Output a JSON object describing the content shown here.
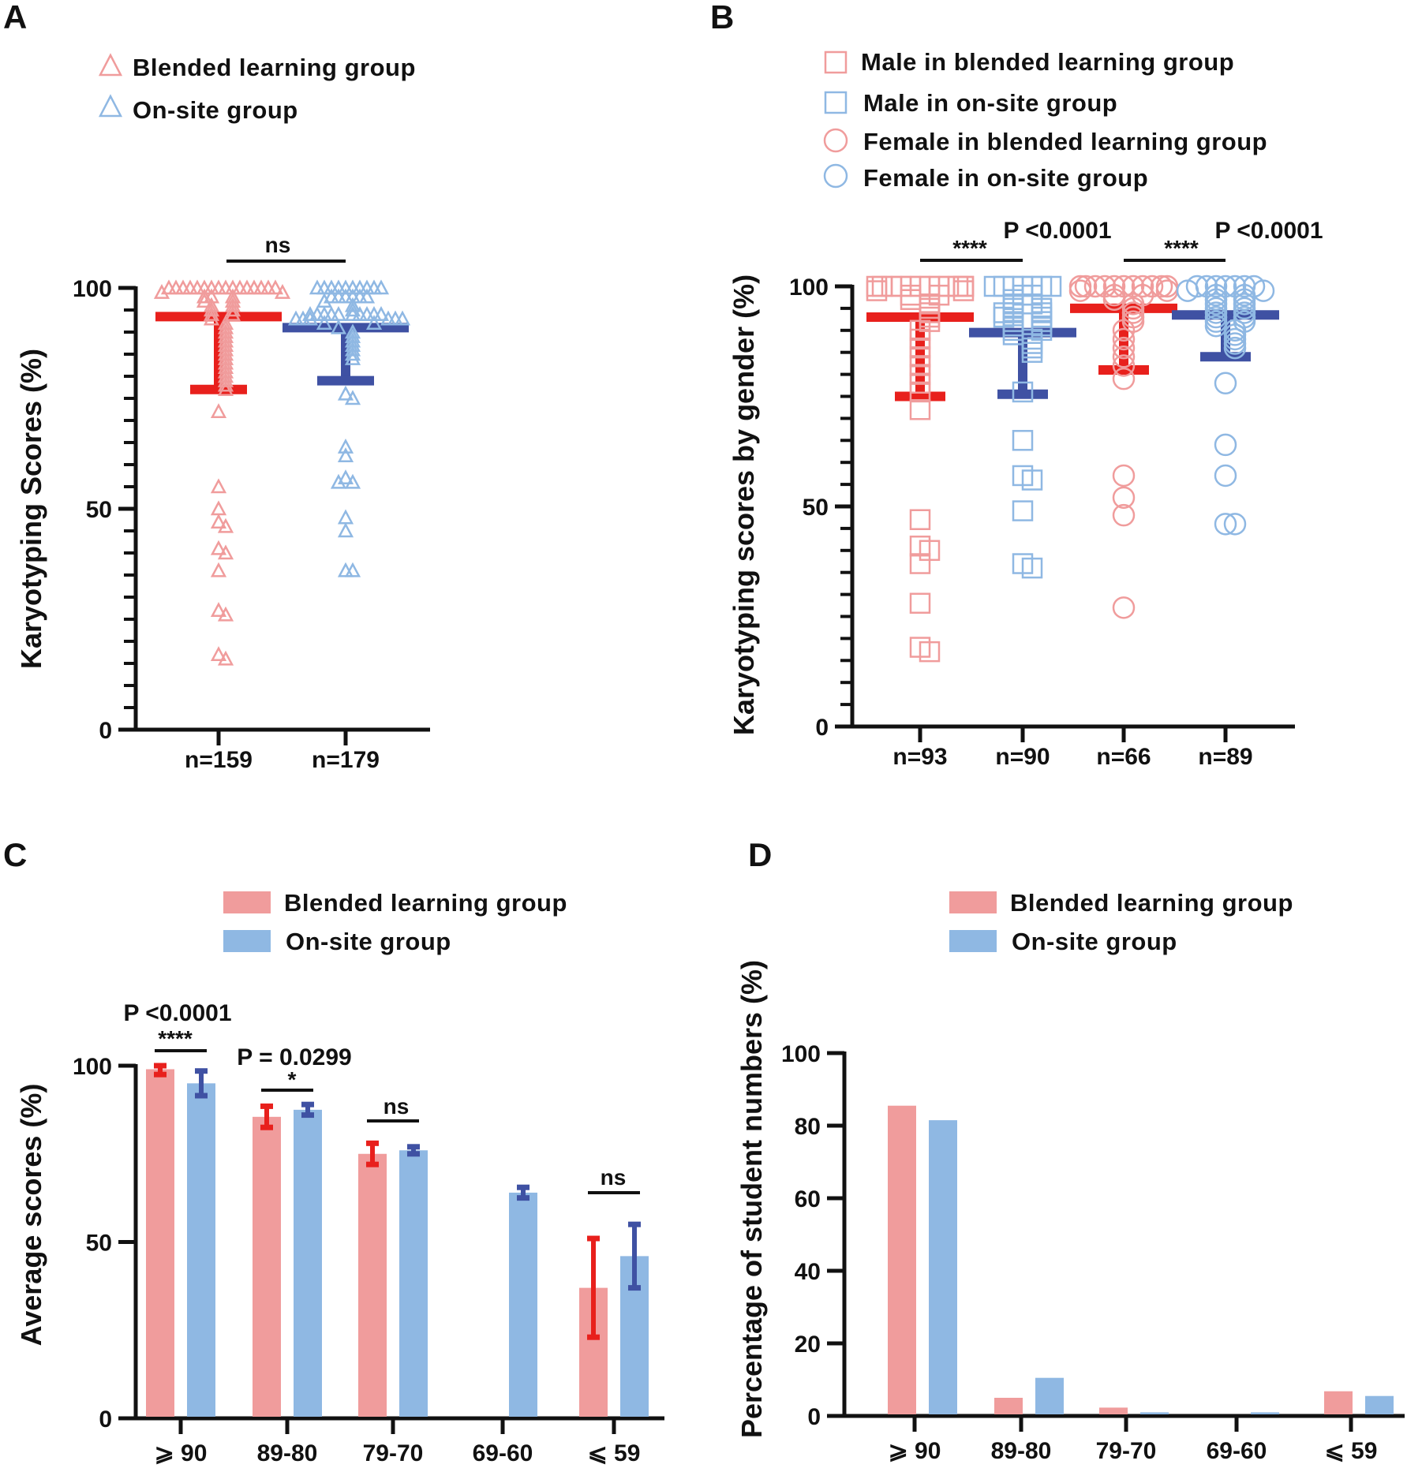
{
  "colors": {
    "blended": "#f09c9c",
    "onsite": "#8fb8e3",
    "blended_summary": "#e8201c",
    "onsite_summary": "#3f51a3"
  },
  "chart_data": [
    {
      "panel": "A",
      "type": "scatter",
      "legend": [
        "Blended learning group",
        "On-site group"
      ],
      "legend_placement": "top-left",
      "ylabel": "Karyotyping Scores (%)",
      "ylim": [
        0,
        100
      ],
      "yticks": [
        0,
        50,
        100
      ],
      "categories": [
        "n=159",
        "n=179"
      ],
      "significance": [
        {
          "between": [
            0,
            1
          ],
          "label": "ns"
        }
      ],
      "series": [
        {
          "name": "Blended learning group",
          "marker": "triangle",
          "mean": 93.5,
          "sd_low": 77,
          "values": [
            100,
            100,
            100,
            100,
            100,
            100,
            100,
            100,
            100,
            100,
            100,
            100,
            100,
            100,
            100,
            100,
            99,
            99,
            98,
            98,
            98,
            97,
            97,
            96,
            96,
            95,
            95,
            94,
            94,
            93,
            92,
            91,
            90,
            89,
            88,
            87,
            86,
            85,
            84,
            83,
            82,
            81,
            80,
            79,
            78,
            77,
            72,
            55,
            50,
            47,
            46,
            41,
            40,
            36,
            27,
            26,
            17,
            16
          ]
        },
        {
          "name": "On-site group",
          "marker": "triangle",
          "mean": 91,
          "sd_low": 79,
          "values": [
            100,
            100,
            100,
            100,
            100,
            100,
            100,
            100,
            100,
            100,
            98,
            98,
            98,
            98,
            98,
            98,
            97,
            96,
            95,
            94,
            94,
            94,
            94,
            94,
            94,
            94,
            94,
            94,
            94,
            93,
            93,
            93,
            93,
            93,
            93,
            92,
            92,
            91,
            90,
            89,
            88,
            87,
            86,
            85,
            84,
            76,
            75,
            64,
            62,
            57,
            56,
            56,
            48,
            45,
            36,
            36
          ]
        }
      ]
    },
    {
      "panel": "B",
      "type": "scatter",
      "legend": [
        "Male in blended learning group",
        "Male in on-site group",
        "Female in blended learning group",
        "Female in on-site group"
      ],
      "legend_placement": "top-left",
      "ylabel": "Karyotyping scores by gender (%)",
      "ylim": [
        0,
        100
      ],
      "yticks": [
        0,
        50,
        100
      ],
      "categories": [
        "n=93",
        "n=90",
        "n=66",
        "n=89"
      ],
      "significance": [
        {
          "between": [
            0,
            1
          ],
          "label": "****",
          "p": "P <0.0001"
        },
        {
          "between": [
            2,
            3
          ],
          "label": "****",
          "p": "P <0.0001"
        }
      ],
      "series": [
        {
          "name": "Male in blended learning group",
          "marker": "square",
          "group": "blended",
          "mean": 93,
          "sd_low": 75,
          "values": [
            100,
            100,
            100,
            100,
            100,
            100,
            100,
            100,
            100,
            100,
            100,
            100,
            99,
            99,
            98,
            98,
            97,
            96,
            95,
            94,
            93,
            92,
            90,
            88,
            86,
            84,
            82,
            80,
            78,
            76,
            72,
            47,
            41,
            40,
            37,
            28,
            18,
            17
          ]
        },
        {
          "name": "Male in on-site group",
          "marker": "square",
          "group": "onsite",
          "mean": 89.5,
          "sd_low": 75.5,
          "values": [
            100,
            100,
            100,
            100,
            100,
            100,
            100,
            98,
            98,
            97,
            96,
            96,
            95,
            95,
            94,
            94,
            94,
            93,
            93,
            92,
            92,
            91,
            91,
            90,
            90,
            89,
            88,
            87,
            86,
            85,
            76,
            65,
            57,
            56,
            49,
            37,
            36
          ]
        },
        {
          "name": "Female in blended learning group",
          "marker": "circle",
          "group": "blended",
          "mean": 95,
          "sd_low": 81,
          "values": [
            100,
            100,
            100,
            100,
            100,
            100,
            100,
            100,
            100,
            100,
            100,
            99,
            99,
            98,
            98,
            97,
            96,
            95,
            94,
            93,
            92,
            90,
            88,
            86,
            84,
            82,
            79,
            57,
            52,
            48,
            27
          ]
        },
        {
          "name": "Female in on-site group",
          "marker": "circle",
          "group": "onsite",
          "mean": 93.5,
          "sd_low": 84,
          "values": [
            100,
            100,
            100,
            100,
            100,
            100,
            100,
            99,
            99,
            98,
            98,
            97,
            97,
            96,
            96,
            95,
            95,
            94,
            94,
            93,
            93,
            92,
            92,
            91,
            90,
            89,
            88,
            87,
            86,
            78,
            64,
            57,
            46,
            46
          ]
        }
      ]
    },
    {
      "panel": "C",
      "type": "bar",
      "legend": [
        "Blended learning group",
        "On-site group"
      ],
      "legend_placement": "top",
      "ylabel": "Average scores (%)",
      "ylim": [
        0,
        100
      ],
      "yticks": [
        0,
        50,
        100
      ],
      "categories": [
        "⩾ 90",
        "89-80",
        "79-70",
        "69-60",
        "⩽ 59"
      ],
      "series": [
        {
          "name": "Blended learning group",
          "values": [
            99,
            85.5,
            75,
            null,
            37
          ],
          "error": [
            1.5,
            3,
            3,
            null,
            14
          ]
        },
        {
          "name": "On-site group",
          "values": [
            95,
            87.5,
            76,
            64,
            46
          ],
          "error": [
            3.5,
            1.5,
            1,
            1.5,
            9
          ]
        }
      ],
      "significance": [
        {
          "category": 0,
          "label": "****",
          "p": "P <0.0001"
        },
        {
          "category": 1,
          "label": "*",
          "p": "P = 0.0299"
        },
        {
          "category": 2,
          "label": "ns"
        },
        {
          "category": 4,
          "label": "ns"
        }
      ]
    },
    {
      "panel": "D",
      "type": "bar",
      "legend": [
        "Blended learning group",
        "On-site group"
      ],
      "legend_placement": "top",
      "ylabel": "Percentage of student numbers (%)",
      "ylim": [
        0,
        100
      ],
      "yticks": [
        0,
        20,
        40,
        60,
        80,
        100
      ],
      "categories": [
        "⩾ 90",
        "89-80",
        "79-70",
        "69-60",
        "⩽ 59"
      ],
      "series": [
        {
          "name": "Blended learning group",
          "values": [
            85.5,
            5,
            2.3,
            0,
            6.8
          ]
        },
        {
          "name": "On-site group",
          "values": [
            81.5,
            10.5,
            1,
            1,
            5.5
          ]
        }
      ]
    }
  ],
  "panels": {
    "A": "A",
    "B": "B",
    "C": "C",
    "D": "D"
  }
}
